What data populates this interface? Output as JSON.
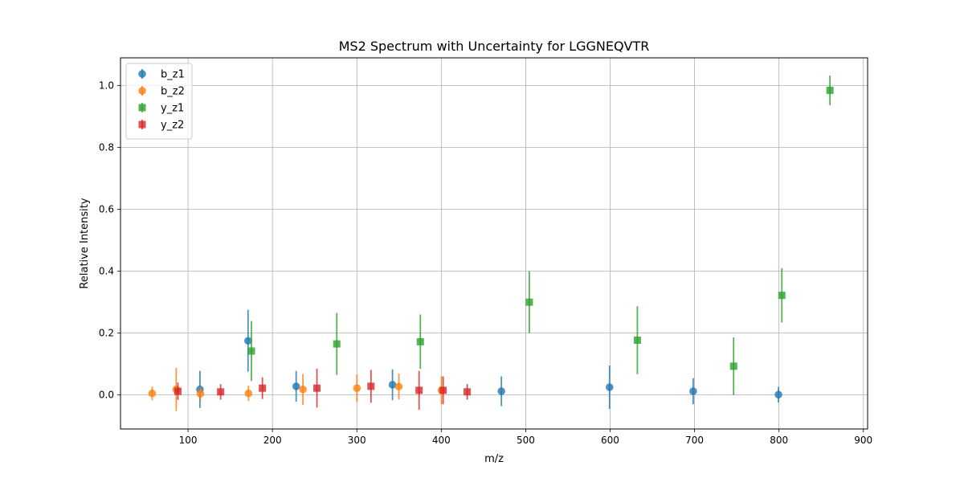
{
  "chart_data": {
    "type": "scatter",
    "title": "MS2 Spectrum with Uncertainty for LGGNEQVTR",
    "xlabel": "m/z",
    "ylabel": "Relative Intensity",
    "xlim": [
      20,
      905
    ],
    "ylim": [
      -0.11,
      1.09
    ],
    "xticks": [
      100,
      200,
      300,
      400,
      500,
      600,
      700,
      800,
      900
    ],
    "yticks": [
      0.0,
      0.2,
      0.4,
      0.6,
      0.8,
      1.0
    ],
    "ytick_labels": [
      "0.0",
      "0.2",
      "0.4",
      "0.6",
      "0.8",
      "1.0"
    ],
    "grid": true,
    "legend_position": "top-left",
    "series": [
      {
        "name": "b_z1",
        "color": "#1f77b4",
        "marker": "circle",
        "points": [
          {
            "x": 114.1,
            "y": 0.018,
            "err": 0.06
          },
          {
            "x": 171.1,
            "y": 0.175,
            "err": 0.1
          },
          {
            "x": 228.1,
            "y": 0.028,
            "err": 0.05
          },
          {
            "x": 342.2,
            "y": 0.033,
            "err": 0.05
          },
          {
            "x": 471.2,
            "y": 0.012,
            "err": 0.048
          },
          {
            "x": 599.3,
            "y": 0.025,
            "err": 0.07
          },
          {
            "x": 698.4,
            "y": 0.012,
            "err": 0.042
          },
          {
            "x": 799.4,
            "y": 0.001,
            "err": 0.025
          }
        ]
      },
      {
        "name": "b_z2",
        "color": "#ff7f0e",
        "marker": "circle",
        "points": [
          {
            "x": 57.5,
            "y": 0.005,
            "err": 0.022
          },
          {
            "x": 86.0,
            "y": 0.018,
            "err": 0.07
          },
          {
            "x": 114.6,
            "y": 0.004,
            "err": 0.022
          },
          {
            "x": 171.6,
            "y": 0.005,
            "err": 0.025
          },
          {
            "x": 236.1,
            "y": 0.018,
            "err": 0.05
          },
          {
            "x": 300.1,
            "y": 0.022,
            "err": 0.045
          },
          {
            "x": 349.7,
            "y": 0.027,
            "err": 0.042
          },
          {
            "x": 400.2,
            "y": 0.015,
            "err": 0.045
          }
        ]
      },
      {
        "name": "y_z1",
        "color": "#2ca02c",
        "marker": "square",
        "points": [
          {
            "x": 175.1,
            "y": 0.142,
            "err": 0.097
          },
          {
            "x": 276.2,
            "y": 0.165,
            "err": 0.1
          },
          {
            "x": 375.2,
            "y": 0.172,
            "err": 0.088
          },
          {
            "x": 504.3,
            "y": 0.3,
            "err": 0.1
          },
          {
            "x": 632.3,
            "y": 0.177,
            "err": 0.11
          },
          {
            "x": 746.3,
            "y": 0.093,
            "err": 0.093
          },
          {
            "x": 803.4,
            "y": 0.322,
            "err": 0.088
          },
          {
            "x": 860.4,
            "y": 0.985,
            "err": 0.048
          }
        ]
      },
      {
        "name": "y_z2",
        "color": "#d62728",
        "marker": "square",
        "points": [
          {
            "x": 88.0,
            "y": 0.012,
            "err": 0.028
          },
          {
            "x": 138.6,
            "y": 0.01,
            "err": 0.025
          },
          {
            "x": 188.1,
            "y": 0.022,
            "err": 0.035
          },
          {
            "x": 252.7,
            "y": 0.022,
            "err": 0.063
          },
          {
            "x": 316.7,
            "y": 0.028,
            "err": 0.053
          },
          {
            "x": 373.7,
            "y": 0.015,
            "err": 0.063
          },
          {
            "x": 402.2,
            "y": 0.015,
            "err": 0.045
          },
          {
            "x": 430.7,
            "y": 0.01,
            "err": 0.025
          }
        ]
      }
    ]
  }
}
